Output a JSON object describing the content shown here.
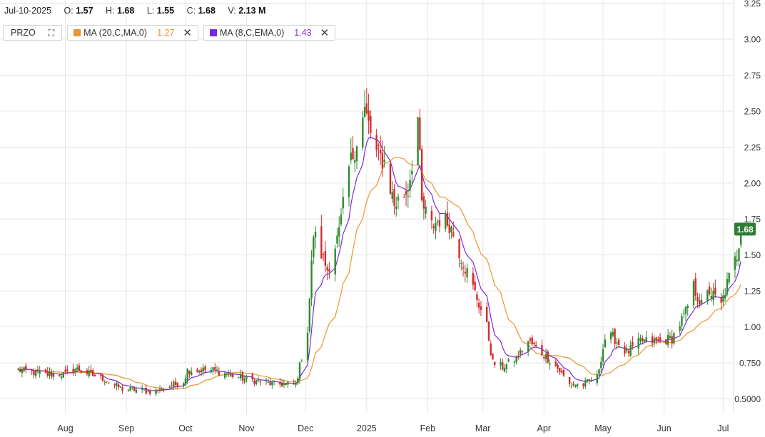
{
  "header": {
    "date": "Jul-10-2025",
    "open_label": "O:",
    "open": "1.57",
    "high_label": "H:",
    "high": "1.68",
    "low_label": "L:",
    "low": "1.55",
    "close_label": "C:",
    "close": "1.68",
    "volume_label": "V:",
    "volume": "2.13 M"
  },
  "legend": {
    "symbol": "PRZO",
    "ma20_label": "MA (20,C,MA,0)",
    "ma20_value": "1.27",
    "ma20_color": "#e8962e",
    "ma8_label": "MA (8,C,EMA,0)",
    "ma8_value": "1.43",
    "ma8_color": "#7a2ae0",
    "close_icon": "close-icon",
    "expand_icon": "expand-icon"
  },
  "last_price_tag": "1.68",
  "colors": {
    "up": "#2f8a2f",
    "down": "#d42a2a",
    "tag": "#2e7d32",
    "grid": "#e6e6e6"
  },
  "chart_data": {
    "type": "candlestick",
    "y_ticks": [
      "0.5000",
      "0.750",
      "1.00",
      "1.25",
      "1.50",
      "1.75",
      "2.00",
      "2.25",
      "2.50",
      "2.75",
      "3.00",
      "3.25"
    ],
    "y_tick_values": [
      0.5,
      0.75,
      1.0,
      1.25,
      1.5,
      1.75,
      2.0,
      2.25,
      2.5,
      2.75,
      3.0,
      3.25
    ],
    "ylim": [
      0.5,
      3.25
    ],
    "x_ticks": [
      "Aug",
      "Sep",
      "Oct",
      "Nov",
      "Dec",
      "2025",
      "Feb",
      "Mar",
      "Apr",
      "May",
      "Jun",
      "Jul"
    ],
    "x_tick_dates": [
      "2024-08-01",
      "2024-09-01",
      "2024-10-01",
      "2024-11-01",
      "2024-12-01",
      "2025-01-01",
      "2025-02-01",
      "2025-03-01",
      "2025-04-01",
      "2025-05-01",
      "2025-06-01",
      "2025-07-01"
    ],
    "close_anchors": [
      [
        "2024-07-08",
        0.7
      ],
      [
        "2024-07-22",
        0.67
      ],
      [
        "2024-08-01",
        0.67
      ],
      [
        "2024-08-06",
        0.71
      ],
      [
        "2024-08-20",
        0.64
      ],
      [
        "2024-08-30",
        0.57
      ],
      [
        "2024-09-15",
        0.55
      ],
      [
        "2024-09-30",
        0.62
      ],
      [
        "2024-10-02",
        0.7
      ],
      [
        "2024-10-15",
        0.7
      ],
      [
        "2024-10-31",
        0.64
      ],
      [
        "2024-11-15",
        0.6
      ],
      [
        "2024-11-26",
        0.6
      ],
      [
        "2024-12-02",
        0.98
      ],
      [
        "2024-12-05",
        1.65
      ],
      [
        "2024-12-12",
        1.4
      ],
      [
        "2024-12-18",
        1.65
      ],
      [
        "2024-12-23",
        2.1
      ],
      [
        "2024-12-31",
        2.5
      ],
      [
        "2025-01-06",
        2.2
      ],
      [
        "2025-01-10",
        2.15
      ],
      [
        "2025-01-15",
        1.85
      ],
      [
        "2025-01-22",
        1.95
      ],
      [
        "2025-01-27",
        2.45
      ],
      [
        "2025-01-29",
        1.85
      ],
      [
        "2025-02-03",
        1.7
      ],
      [
        "2025-02-07",
        1.75
      ],
      [
        "2025-02-12",
        1.72
      ],
      [
        "2025-02-19",
        1.45
      ],
      [
        "2025-02-26",
        1.2
      ],
      [
        "2025-03-03",
        1.0
      ],
      [
        "2025-03-06",
        0.75
      ],
      [
        "2025-03-11",
        0.72
      ],
      [
        "2025-03-18",
        0.78
      ],
      [
        "2025-03-24",
        0.9
      ],
      [
        "2025-03-31",
        0.82
      ],
      [
        "2025-04-07",
        0.73
      ],
      [
        "2025-04-14",
        0.6
      ],
      [
        "2025-04-21",
        0.6
      ],
      [
        "2025-04-28",
        0.65
      ],
      [
        "2025-05-02",
        0.92
      ],
      [
        "2025-05-06",
        0.93
      ],
      [
        "2025-05-13",
        0.82
      ],
      [
        "2025-05-20",
        0.9
      ],
      [
        "2025-05-29",
        0.9
      ],
      [
        "2025-06-05",
        0.92
      ],
      [
        "2025-06-12",
        1.1
      ],
      [
        "2025-06-16",
        1.28
      ],
      [
        "2025-06-20",
        1.15
      ],
      [
        "2025-06-24",
        1.25
      ],
      [
        "2025-06-30",
        1.15
      ],
      [
        "2025-07-03",
        1.3
      ],
      [
        "2025-07-08",
        1.5
      ],
      [
        "2025-07-10",
        1.68
      ]
    ],
    "last_bar": {
      "date": "2025-07-10",
      "open": 1.57,
      "high": 1.68,
      "low": 1.55,
      "close": 1.68
    },
    "series": [
      {
        "name": "MA (20,C,MA,0)",
        "kind": "sma",
        "period": 20,
        "last_value": 1.27
      },
      {
        "name": "MA (8,C,EMA,0)",
        "kind": "ema",
        "period": 8,
        "last_value": 1.43
      }
    ]
  }
}
